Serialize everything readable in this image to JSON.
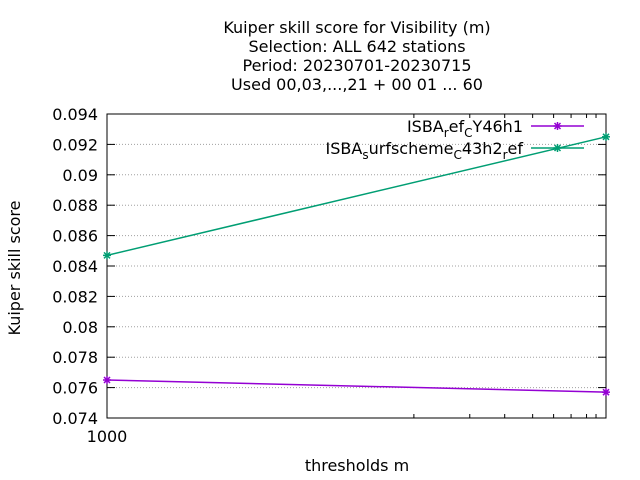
{
  "chart_data": {
    "type": "line",
    "title_lines": [
      "Kuiper skill score  for Visibility (m)",
      "Selection: ALL    642 stations",
      "Period: 20230701-20230715",
      "Used  00,03,...,21  + 00 01 ... 60"
    ],
    "xlabel": "thresholds m",
    "ylabel": "Kuiper skill score",
    "x_ticks": [
      "1000"
    ],
    "y_ticks": [
      "0.074",
      "0.076",
      "0.078",
      "0.08",
      "0.082",
      "0.084",
      "0.086",
      "0.088",
      "0.09",
      "0.092",
      "0.094"
    ],
    "ylim": [
      0.074,
      0.094
    ],
    "xlim": [
      1000,
      2000
    ],
    "grid": "horizontal",
    "legend_position": "top-right",
    "series": [
      {
        "name": "ISBA_ref_CY46h1",
        "legend_parts": [
          {
            "text": "ISBA",
            "sub": false
          },
          {
            "text": "r",
            "sub": true
          },
          {
            "text": "ef",
            "sub": false
          },
          {
            "text": "C",
            "sub": true
          },
          {
            "text": "Y46h1",
            "sub": false
          }
        ],
        "color": "#9400d3",
        "x": [
          1000,
          2000
        ],
        "y": [
          0.0765,
          0.0757
        ]
      },
      {
        "name": "ISBA_surfscheme_C43h2_ref",
        "legend_parts": [
          {
            "text": "ISBA",
            "sub": false
          },
          {
            "text": "s",
            "sub": true
          },
          {
            "text": "urfscheme",
            "sub": false
          },
          {
            "text": "C",
            "sub": true
          },
          {
            "text": "43h2",
            "sub": false
          },
          {
            "text": "r",
            "sub": true
          },
          {
            "text": "ef",
            "sub": false
          }
        ],
        "color": "#009e73",
        "x": [
          1000,
          2000
        ],
        "y": [
          0.0847,
          0.0925
        ]
      }
    ]
  }
}
